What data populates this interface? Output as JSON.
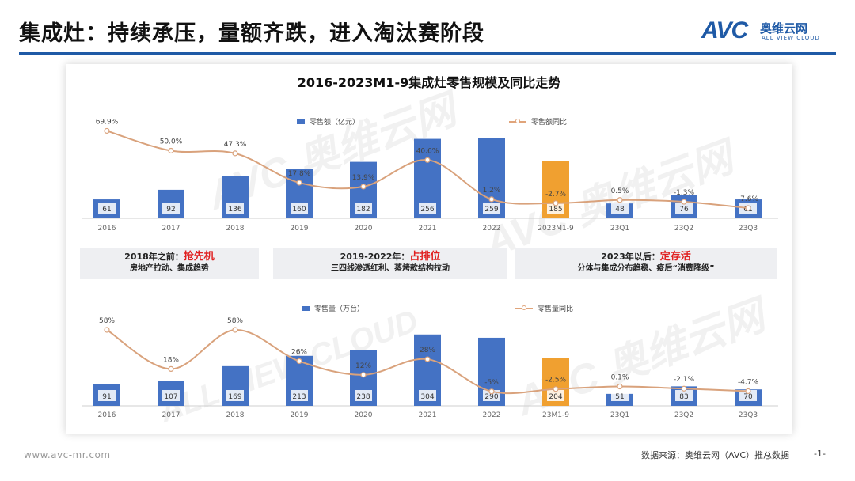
{
  "header": {
    "title": "集成灶：持续承压，量额齐跌，进入淘汰赛阶段"
  },
  "logo": {
    "mark": "AVC",
    "cn": "奥维云网",
    "en": "ALL VIEW CLOUD"
  },
  "watermark": {
    "text": "AVC 奥维云网",
    "sub": "ALL VIEW CLOUD"
  },
  "colors": {
    "bar": "#4472c4",
    "bar_highlight": "#f0a030",
    "line": "#d9a27c",
    "accent_red": "#e02020",
    "brand": "#1f5aa6"
  },
  "chart_data": [
    {
      "type": "bar+line",
      "title": "2016-2023M1-9集成灶零售规模及同比走势",
      "categories": [
        "2016",
        "2017",
        "2018",
        "2019",
        "2020",
        "2021",
        "2022",
        "2023M1-9",
        "23Q1",
        "23Q2",
        "23Q3"
      ],
      "series": [
        {
          "name": "零售额（亿元）",
          "kind": "bar",
          "values": [
            61,
            92,
            136,
            160,
            182,
            256,
            259,
            185,
            48,
            76,
            61
          ],
          "labels": [
            "61",
            "92",
            "136",
            "160",
            "182",
            "256",
            "259",
            "185",
            "48",
            "76",
            "61"
          ]
        },
        {
          "name": "零售额同比",
          "kind": "line",
          "values": [
            69.9,
            50.0,
            47.3,
            17.8,
            13.9,
            40.6,
            1.2,
            -2.7,
            0.5,
            -1.3,
            -7.6
          ],
          "labels": [
            "69.9%",
            "50.0%",
            "47.3%",
            "17.8%",
            "13.9%",
            "40.6%",
            "1.2%",
            "-2.7%",
            "0.5%",
            "-1.3%",
            "-7.6%"
          ]
        }
      ],
      "highlight_index": 7,
      "bar_max": 260,
      "line_range": [
        -10,
        75
      ]
    },
    {
      "type": "bar+line",
      "title": "",
      "categories": [
        "2016",
        "2017",
        "2018",
        "2019",
        "2020",
        "2021",
        "2022",
        "23M1-9",
        "23Q1",
        "23Q2",
        "23Q3"
      ],
      "series": [
        {
          "name": "零售量（万台）",
          "kind": "bar",
          "values": [
            91,
            107,
            169,
            213,
            238,
            304,
            290,
            204,
            51,
            83,
            70
          ],
          "labels": [
            "91",
            "107",
            "169",
            "213",
            "238",
            "304",
            "290",
            "204",
            "51",
            "83",
            "70"
          ]
        },
        {
          "name": "零售量同比",
          "kind": "line",
          "values": [
            58,
            18,
            58,
            26,
            12,
            28,
            -5,
            -2.5,
            0.1,
            -2.1,
            -4.7
          ],
          "labels": [
            "58%",
            "18%",
            "58%",
            "26%",
            "12%",
            "28%",
            "-5%",
            "-2.5%",
            "0.1%",
            "-2.1%",
            "-4.7%"
          ]
        }
      ],
      "highlight_index": 7,
      "bar_max": 310,
      "line_range": [
        -10,
        75
      ]
    }
  ],
  "phases": [
    {
      "head": "2018年之前：",
      "key": "抢先机",
      "sub": "房地产拉动、集成趋势"
    },
    {
      "head": "2019-2022年：",
      "key": "占排位",
      "sub": "三四线渗透红利、蒸烤款结构拉动"
    },
    {
      "head": "2023年以后：",
      "key": "定存活",
      "sub": "分体与集成分布趋稳、疫后“消费降级”"
    }
  ],
  "footer": {
    "url": "www.avc-mr.com",
    "source": "数据来源：奥维云网（AVC）推总数据",
    "page": "-1-"
  }
}
